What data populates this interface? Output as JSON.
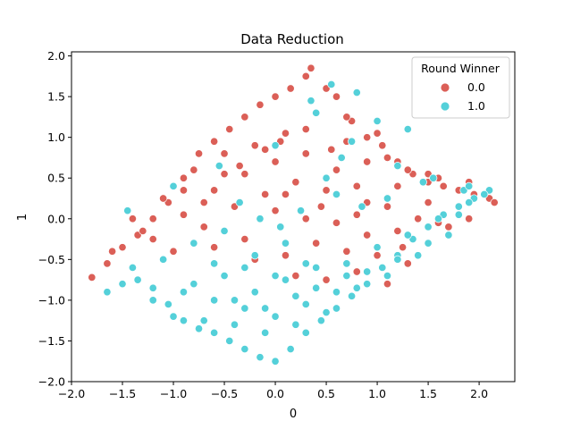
{
  "chart_data": {
    "type": "scatter",
    "title": "Data Reduction",
    "xlabel": "0",
    "ylabel": "1",
    "xlim": [
      -2.0,
      2.35
    ],
    "ylim": [
      -2.0,
      2.05
    ],
    "xticks": [
      -2.0,
      -1.5,
      -1.0,
      -0.5,
      0.0,
      0.5,
      1.0,
      1.5,
      2.0
    ],
    "yticks": [
      -2.0,
      -1.5,
      -1.0,
      -0.5,
      0.0,
      0.5,
      1.0,
      1.5,
      2.0
    ],
    "xtick_labels": [
      "−2.0",
      "−1.5",
      "−1.0",
      "−0.5",
      "0.0",
      "0.5",
      "1.0",
      "1.5",
      "2.0"
    ],
    "ytick_labels": [
      "−2.0",
      "−1.5",
      "−1.0",
      "−0.5",
      "0.0",
      "0.5",
      "1.0",
      "1.5",
      "2.0"
    ],
    "grid": false,
    "legend": {
      "title": "Round Winner",
      "placement": "top-right",
      "entries": [
        "0.0",
        "1.0"
      ]
    },
    "series": [
      {
        "name": "0.0",
        "color": "#db5f57",
        "x": [
          -1.8,
          -1.65,
          -1.5,
          -1.35,
          -1.2,
          -1.05,
          -0.9,
          -0.75,
          -0.6,
          -0.45,
          -0.3,
          -0.15,
          0.0,
          0.15,
          0.3,
          0.35,
          0.5,
          0.6,
          0.75,
          0.9,
          1.05,
          1.2,
          1.35,
          1.5,
          1.65,
          1.8,
          1.95,
          2.1,
          2.15,
          -1.4,
          -1.1,
          -0.8,
          -0.5,
          -0.2,
          0.1,
          0.4,
          0.7,
          1.0,
          1.3,
          1.6,
          1.9,
          -1.2,
          -0.9,
          -0.6,
          -0.3,
          0.0,
          0.3,
          0.6,
          0.9,
          1.2,
          1.5,
          1.8,
          -1.0,
          -0.7,
          -0.4,
          -0.1,
          0.2,
          0.5,
          0.8,
          1.1,
          1.4,
          1.7,
          -0.6,
          -0.3,
          0.0,
          0.3,
          0.6,
          0.9,
          1.2,
          1.5,
          -0.2,
          0.1,
          0.4,
          0.7,
          1.0,
          1.3,
          0.2,
          0.5,
          0.8,
          1.1,
          -0.9,
          -0.5,
          -0.1,
          0.3,
          0.7,
          1.1,
          1.5,
          1.9,
          0.9,
          1.25,
          1.6,
          0.1,
          0.45,
          0.8,
          -1.6,
          -1.3,
          -0.7,
          -0.35,
          0.05,
          0.55
        ],
        "y": [
          -0.72,
          -0.55,
          -0.35,
          -0.2,
          0.0,
          0.2,
          0.5,
          0.8,
          0.95,
          1.1,
          1.25,
          1.4,
          1.5,
          1.6,
          1.75,
          1.85,
          1.6,
          1.5,
          1.2,
          1.0,
          0.9,
          0.7,
          0.55,
          0.45,
          0.4,
          0.35,
          0.3,
          0.25,
          0.2,
          0.0,
          0.25,
          0.6,
          0.8,
          0.9,
          1.05,
          1.3,
          1.25,
          1.05,
          0.6,
          0.5,
          0.45,
          -0.25,
          0.05,
          0.35,
          0.55,
          0.7,
          0.8,
          0.6,
          0.7,
          0.4,
          0.2,
          0.15,
          -0.4,
          -0.1,
          0.15,
          0.3,
          0.45,
          0.35,
          0.4,
          0.15,
          0.0,
          -0.1,
          -0.35,
          -0.25,
          0.1,
          0.0,
          -0.05,
          0.2,
          -0.15,
          -0.3,
          -0.5,
          -0.45,
          -0.3,
          -0.4,
          -0.45,
          -0.55,
          -0.7,
          -0.75,
          -0.65,
          -0.8,
          0.35,
          0.55,
          0.85,
          1.1,
          0.95,
          0.75,
          0.55,
          0.0,
          -0.2,
          -0.35,
          -0.05,
          0.3,
          0.15,
          0.05,
          -0.4,
          -0.15,
          0.2,
          0.65,
          0.95,
          0.85
        ]
      },
      {
        "name": "1.0",
        "color": "#54d0d9",
        "x": [
          -1.65,
          -1.5,
          -1.35,
          -1.2,
          -1.05,
          -0.9,
          -0.75,
          -0.6,
          -0.45,
          -0.3,
          -0.15,
          0.0,
          0.15,
          0.3,
          0.45,
          0.6,
          0.75,
          0.9,
          1.05,
          1.2,
          1.35,
          1.5,
          1.65,
          1.8,
          1.95,
          2.1,
          -1.4,
          -1.1,
          -0.8,
          -0.5,
          -0.2,
          0.1,
          0.4,
          0.7,
          1.0,
          1.3,
          1.6,
          1.9,
          -1.2,
          -0.9,
          -0.6,
          -0.3,
          0.0,
          0.3,
          0.6,
          0.9,
          1.2,
          1.5,
          1.8,
          -1.0,
          -0.7,
          -0.4,
          -0.1,
          0.2,
          0.5,
          0.8,
          1.1,
          1.4,
          1.7,
          2.05,
          -0.8,
          -0.5,
          -0.2,
          0.1,
          0.4,
          0.7,
          -0.6,
          -0.3,
          0.0,
          0.3,
          -0.4,
          -0.1,
          0.2,
          -0.35,
          -0.15,
          0.05,
          0.25,
          0.6,
          0.85,
          1.1,
          1.45,
          1.85,
          0.35,
          0.55,
          0.8,
          1.0,
          1.3,
          0.5,
          0.65,
          -1.45,
          -1.0,
          -0.55,
          0.0,
          0.4,
          0.75,
          1.2,
          1.55,
          1.9
        ],
        "y": [
          -0.9,
          -0.8,
          -0.75,
          -0.85,
          -1.05,
          -1.25,
          -1.35,
          -1.4,
          -1.5,
          -1.6,
          -1.7,
          -1.75,
          -1.6,
          -1.4,
          -1.25,
          -1.1,
          -0.95,
          -0.8,
          -0.6,
          -0.45,
          -0.25,
          -0.1,
          0.05,
          0.15,
          0.25,
          0.35,
          -0.6,
          -0.5,
          -0.3,
          -0.15,
          -0.45,
          -0.3,
          -0.6,
          -0.55,
          -0.35,
          -0.2,
          0.0,
          0.2,
          -1.0,
          -0.9,
          -1.0,
          -1.1,
          -1.2,
          -1.05,
          -0.9,
          -0.65,
          -0.5,
          -0.3,
          0.05,
          -1.2,
          -1.25,
          -1.3,
          -1.4,
          -1.3,
          -1.15,
          -0.85,
          -0.7,
          -0.45,
          -0.2,
          0.3,
          -0.8,
          -0.7,
          -0.9,
          -0.75,
          -0.85,
          -0.7,
          -0.55,
          -0.6,
          -0.7,
          -0.55,
          -1.0,
          -1.1,
          -0.95,
          0.2,
          0.0,
          -0.1,
          0.1,
          0.3,
          0.15,
          0.25,
          0.45,
          0.35,
          1.45,
          1.65,
          1.55,
          1.2,
          1.1,
          0.5,
          0.75,
          0.1,
          0.4,
          0.65,
          0.9,
          1.3,
          0.95,
          0.65,
          0.5,
          0.4
        ]
      }
    ]
  }
}
